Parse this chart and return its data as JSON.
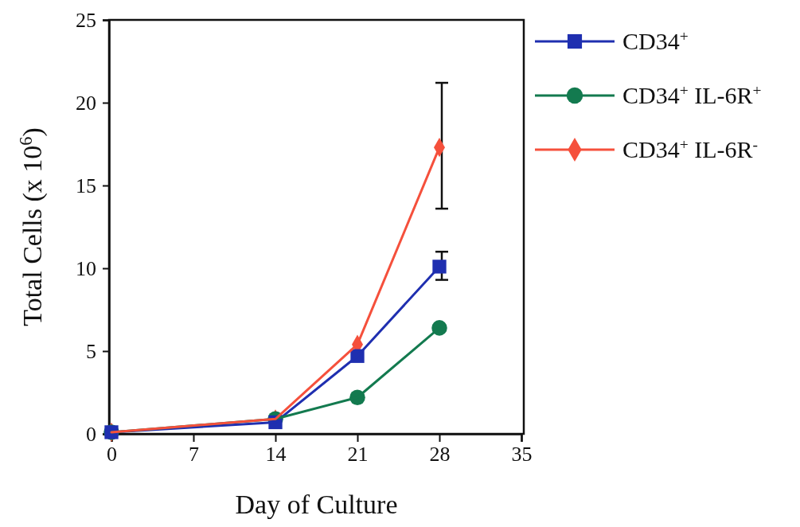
{
  "chart_data": {
    "type": "line",
    "xlabel": "Day of Culture",
    "ylabel": "Total Cells (x 10$^{6}$)",
    "x": [
      0,
      14,
      21,
      28
    ],
    "series": [
      {
        "name": "CD34$^{+}$",
        "color": "#1f2fb0",
        "marker": "square",
        "values": [
          0.1,
          0.7,
          4.7,
          10.1
        ],
        "errors": [
          null,
          null,
          null,
          [
            9.3,
            11.0
          ]
        ]
      },
      {
        "name": "CD34$^{+}$ IL-6R$^{+}$",
        "color": "#137a4f",
        "marker": "circle",
        "values": [
          0.1,
          0.9,
          2.2,
          6.4
        ]
      },
      {
        "name": "CD34$^{+}$ IL-6R$^{-}$",
        "color": "#f5503c",
        "marker": "diamond",
        "values": [
          0.1,
          0.9,
          5.4,
          17.3
        ],
        "errors": [
          null,
          null,
          null,
          [
            13.6,
            21.2
          ]
        ]
      }
    ],
    "xlim": [
      0,
      35
    ],
    "xticks": [
      0,
      7,
      14,
      21,
      28,
      35
    ],
    "ylim": [
      0,
      25
    ],
    "yticks": [
      0,
      5,
      10,
      15,
      20,
      25
    ],
    "grid": false,
    "legend": "right",
    "line_style": "solid"
  }
}
